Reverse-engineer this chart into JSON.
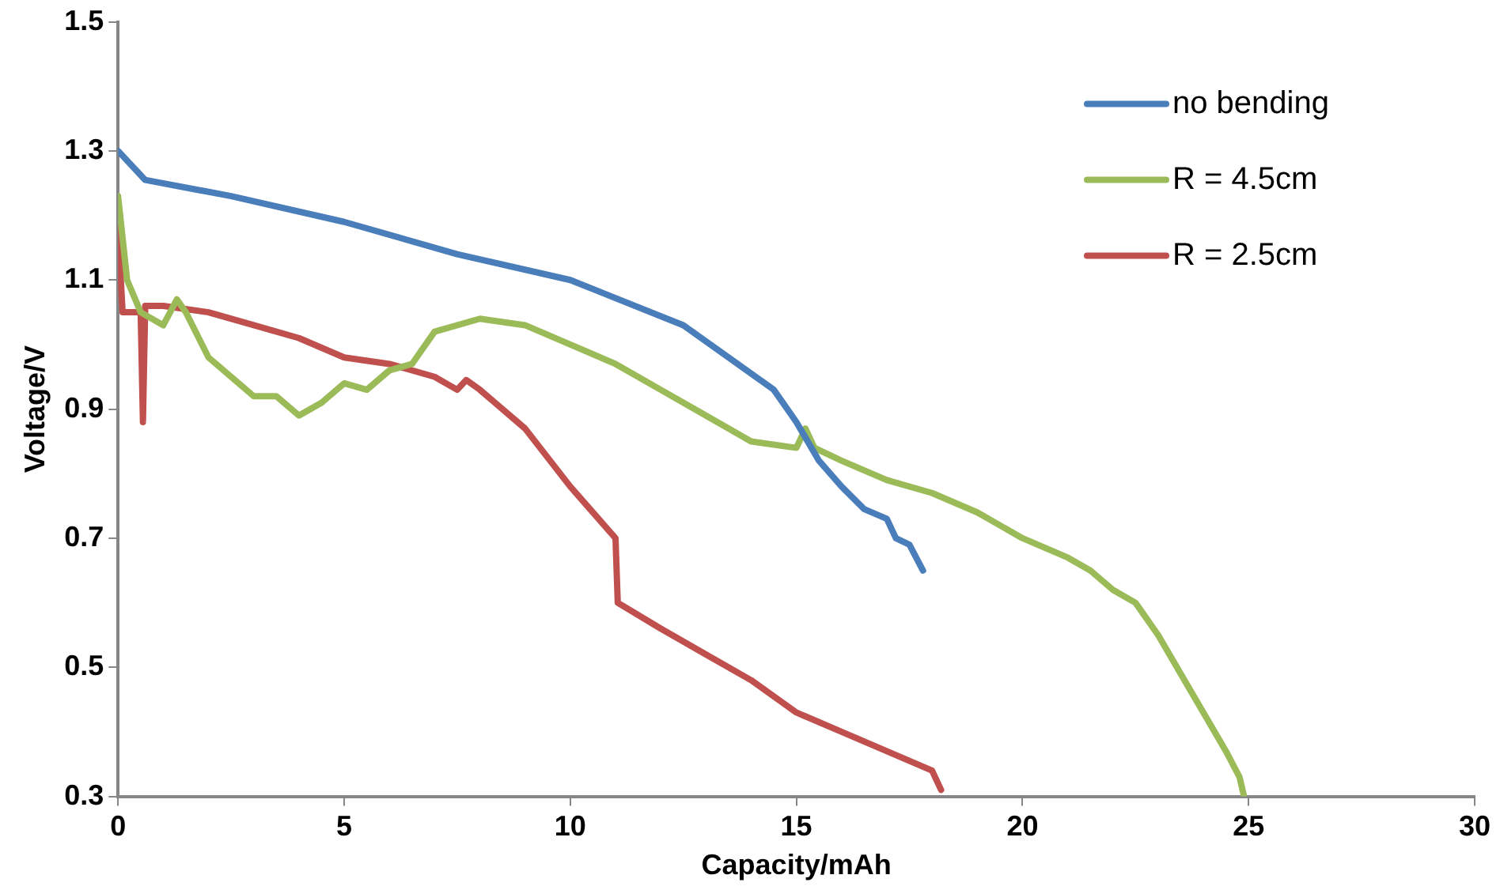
{
  "chart_data": {
    "type": "line",
    "xlabel": "Capacity/mAh",
    "ylabel": "Voltage/V",
    "xlim": [
      0,
      30
    ],
    "xticks": [
      0,
      5,
      10,
      15,
      20,
      25,
      30
    ],
    "ylim": [
      0.3,
      1.5
    ],
    "yticks": [
      {
        "value": 0.3,
        "label": "0.3"
      },
      {
        "value": 0.5,
        "label": "0.5"
      },
      {
        "value": 0.7,
        "label": "0.7"
      },
      {
        "value": 0.9,
        "label": "0.9"
      },
      {
        "value": 1.1,
        "label": "1.1"
      },
      {
        "value": 1.3,
        "label": "1.3"
      },
      {
        "value": 1.5,
        "label": "1.5"
      }
    ],
    "grid": false,
    "legend": "top right",
    "marker": "none",
    "line_style": "solid",
    "series": [
      {
        "name": "no bending",
        "color": "#4a7ebb",
        "x": [
          0,
          0.6,
          2.5,
          5,
          7.5,
          10,
          12.5,
          13.5,
          14.5,
          15,
          15.5,
          16,
          16.5,
          17,
          17.2,
          17.5,
          17.8
        ],
        "values": [
          1.3,
          1.255,
          1.23,
          1.19,
          1.14,
          1.1,
          1.03,
          0.98,
          0.93,
          0.88,
          0.82,
          0.78,
          0.745,
          0.73,
          0.7,
          0.69,
          0.65
        ]
      },
      {
        "name": "R = 4.5cm",
        "color": "#9bbb59",
        "x": [
          0,
          0.2,
          0.5,
          1,
          1.3,
          1.5,
          2,
          2.5,
          3,
          3.5,
          4,
          4.5,
          5,
          5.5,
          6,
          6.5,
          7,
          8,
          9,
          10,
          11,
          12,
          13,
          14,
          15,
          15.2,
          15.4,
          16,
          17,
          18,
          19,
          20,
          21,
          21.5,
          22,
          22.5,
          23,
          23.5,
          24,
          24.5,
          24.8,
          24.9
        ],
        "values": [
          1.23,
          1.1,
          1.05,
          1.03,
          1.07,
          1.05,
          0.98,
          0.95,
          0.92,
          0.92,
          0.89,
          0.91,
          0.94,
          0.93,
          0.96,
          0.97,
          1.02,
          1.04,
          1.03,
          1.0,
          0.97,
          0.93,
          0.89,
          0.85,
          0.84,
          0.87,
          0.84,
          0.82,
          0.79,
          0.77,
          0.74,
          0.7,
          0.67,
          0.65,
          0.62,
          0.6,
          0.55,
          0.49,
          0.43,
          0.37,
          0.33,
          0.3
        ]
      },
      {
        "name": "R = 2.5cm",
        "color": "#c0504d",
        "x": [
          0,
          0.1,
          0.5,
          0.55,
          0.6,
          1,
          2,
          3,
          4,
          5,
          6,
          7,
          7.5,
          7.7,
          8,
          9,
          10,
          11,
          11.05,
          12,
          13,
          14,
          15,
          16,
          17,
          18,
          18.2
        ],
        "values": [
          1.18,
          1.05,
          1.05,
          0.88,
          1.06,
          1.06,
          1.05,
          1.03,
          1.01,
          0.98,
          0.97,
          0.95,
          0.93,
          0.945,
          0.93,
          0.87,
          0.78,
          0.7,
          0.6,
          0.56,
          0.52,
          0.48,
          0.43,
          0.4,
          0.37,
          0.34,
          0.31
        ]
      }
    ]
  }
}
